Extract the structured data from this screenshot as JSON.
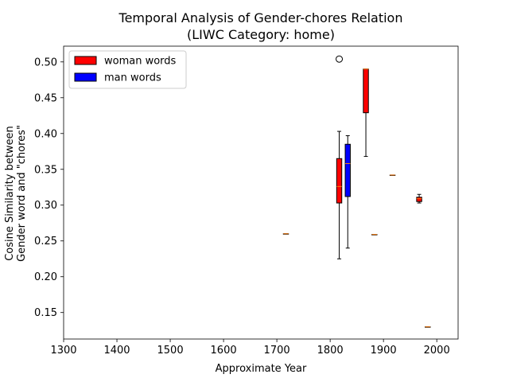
{
  "chart_data": {
    "type": "boxplot",
    "title": "Temporal Analysis of Gender-chores Relation",
    "subtitle": "(LIWC Category: home)",
    "xlabel": "Approximate Year",
    "ylabel_line1": "Cosine Similarity between",
    "ylabel_line2": "Gender word and \"chores\"",
    "xlim": [
      1300,
      2040
    ],
    "ylim": [
      0.113,
      0.522
    ],
    "xticks": [
      "1300",
      "1400",
      "1500",
      "1600",
      "1700",
      "1800",
      "1900",
      "2000"
    ],
    "yticks": [
      "0.15",
      "0.20",
      "0.25",
      "0.30",
      "0.35",
      "0.40",
      "0.45",
      "0.50"
    ],
    "legend_position": "top-left",
    "colors": {
      "woman": "#ff0000",
      "man": "#0000ff",
      "median": "#ff7f0e",
      "outline": "#000000"
    },
    "series": [
      {
        "name": "woman words",
        "color": "#ff0000",
        "boxes": [
          {
            "x": 1717,
            "whislo": 0.26,
            "q1": 0.26,
            "med": 0.26,
            "q3": 0.26,
            "whishi": 0.26,
            "fliers": []
          },
          {
            "x": 1817,
            "whislo": 0.225,
            "q1": 0.303,
            "med": 0.326,
            "q3": 0.365,
            "whishi": 0.403,
            "fliers": [
              0.504
            ]
          },
          {
            "x": 1867,
            "whislo": 0.368,
            "q1": 0.429,
            "med": 0.49,
            "q3": 0.49,
            "whishi": 0.49,
            "fliers": []
          },
          {
            "x": 1967,
            "whislo": 0.303,
            "q1": 0.305,
            "med": 0.309,
            "q3": 0.311,
            "whishi": 0.315,
            "fliers": []
          }
        ]
      },
      {
        "name": "man words",
        "color": "#0000ff",
        "boxes": [
          {
            "x": 1833,
            "whislo": 0.24,
            "q1": 0.312,
            "med": 0.358,
            "q3": 0.385,
            "whishi": 0.397,
            "fliers": []
          },
          {
            "x": 1883,
            "whislo": 0.259,
            "q1": 0.259,
            "med": 0.259,
            "q3": 0.259,
            "whishi": 0.259,
            "fliers": []
          },
          {
            "x": 1917,
            "whislo": 0.342,
            "q1": 0.342,
            "med": 0.342,
            "q3": 0.342,
            "whishi": 0.342,
            "fliers": []
          },
          {
            "x": 1983,
            "whislo": 0.13,
            "q1": 0.13,
            "med": 0.13,
            "q3": 0.13,
            "whishi": 0.13,
            "fliers": []
          }
        ]
      }
    ]
  }
}
